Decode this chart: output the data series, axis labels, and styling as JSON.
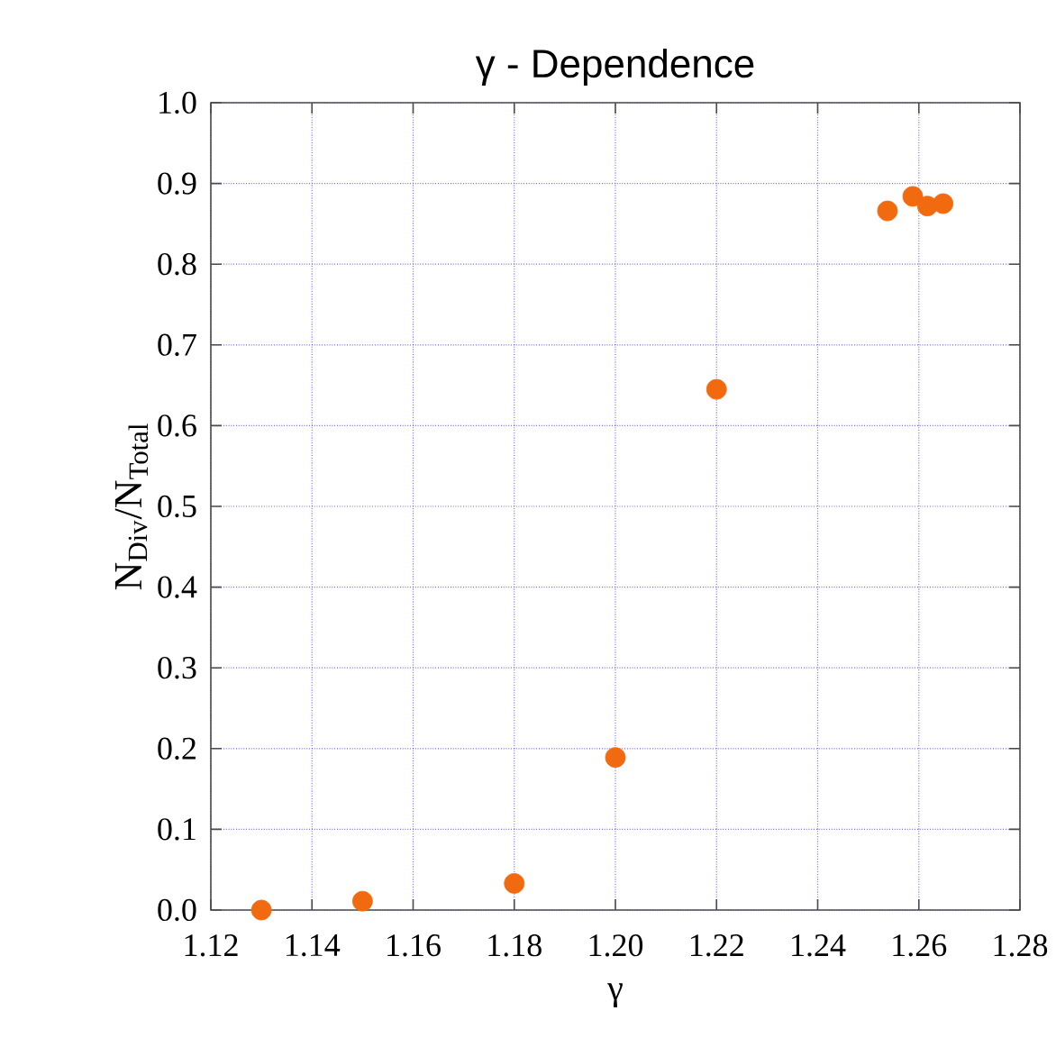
{
  "chart_data": {
    "type": "scatter",
    "title": "γ - Dependence",
    "xlabel": "γ",
    "ylabel": "N$_{Div}$/N$_{Total}$",
    "x": [
      1.13,
      1.15,
      1.18,
      1.2,
      1.22,
      1.2538,
      1.2588,
      1.2617,
      1.2648
    ],
    "values": [
      0.0,
      0.011,
      0.033,
      0.189,
      0.645,
      0.866,
      0.884,
      0.872,
      0.875
    ],
    "color": "#f26a10",
    "grid": true,
    "xlim": [
      1.12,
      1.28
    ],
    "xticks": [
      1.12,
      1.14,
      1.16,
      1.18,
      {
        "value": 1.2,
        "label": "1.20"
      },
      1.22,
      1.24,
      1.26,
      1.28
    ],
    "ylim": [
      0.0,
      1.0
    ],
    "yticks": [
      {
        "value": 0,
        "label": "0.0"
      },
      0.1,
      0.2,
      0.3,
      0.4,
      0.5,
      0.6,
      0.7,
      0.8,
      0.9,
      {
        "value": 1,
        "label": "1.0"
      }
    ]
  }
}
